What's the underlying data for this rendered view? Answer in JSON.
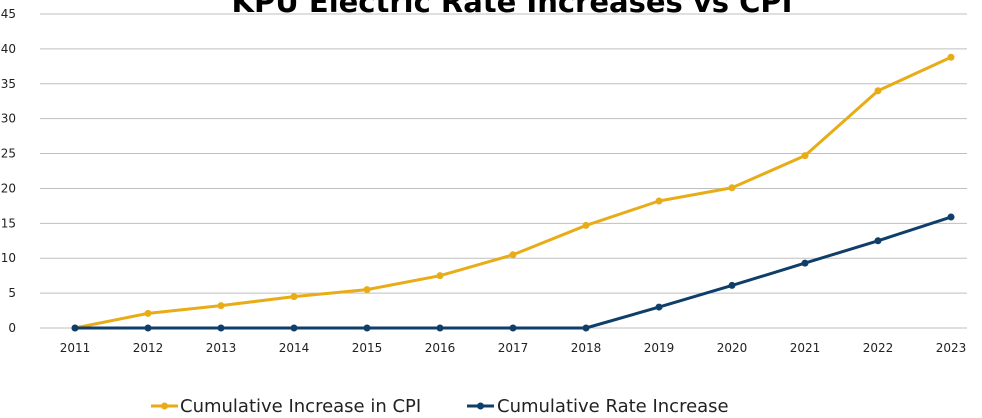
{
  "chart_data": {
    "type": "line",
    "title": "KPU Electric Rate Increases vs CPI",
    "xlabel": "",
    "ylabel": "",
    "categories": [
      "2011",
      "2012",
      "2013",
      "2014",
      "2015",
      "2016",
      "2017",
      "2018",
      "2019",
      "2020",
      "2021",
      "2022",
      "2023"
    ],
    "ylim": [
      0,
      45
    ],
    "yticks": [
      0,
      5,
      10,
      15,
      20,
      25,
      30,
      35,
      40,
      45
    ],
    "grid": true,
    "legend_position": "bottom",
    "series": [
      {
        "name": "Cumulative Increase in CPI",
        "color": "#E8AC16",
        "values": [
          0,
          2.1,
          3.2,
          4.5,
          5.5,
          7.5,
          10.5,
          14.7,
          18.2,
          20.1,
          24.7,
          34.0,
          38.8
        ]
      },
      {
        "name": "Cumulative Rate Increase",
        "color": "#103E6B",
        "values": [
          0,
          0,
          0,
          0,
          0,
          0,
          0,
          0,
          3.0,
          6.1,
          9.3,
          12.5,
          15.9
        ]
      }
    ]
  }
}
